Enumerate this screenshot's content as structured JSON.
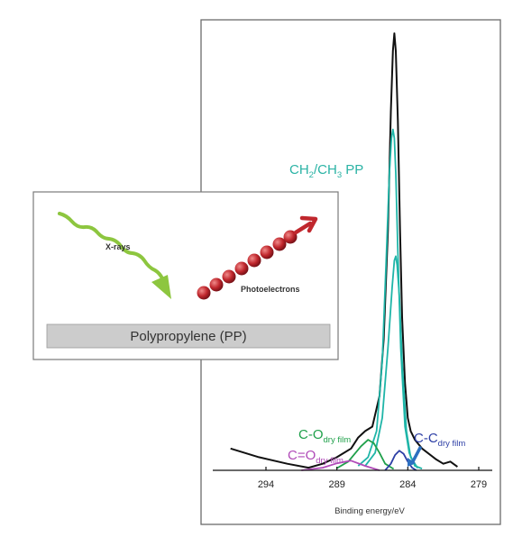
{
  "chart_data": {
    "type": "line",
    "title": "",
    "xlabel": "Binding energy/eV",
    "ylabel": "",
    "xlim": [
      297,
      279
    ],
    "x_reversed": true,
    "ylim": [
      0,
      1.0
    ],
    "xticks": [
      294,
      289,
      284,
      279
    ],
    "series": [
      {
        "key": "envelope",
        "color": "#111111",
        "x": [
          296.5,
          294.5,
          292.5,
          291,
          290,
          289,
          288,
          287.5,
          287,
          286.5,
          286,
          285.7,
          285.4,
          285.2,
          285.05,
          284.95,
          284.85,
          284.7,
          284.55,
          284.4,
          284.2,
          284,
          283.8,
          283.5,
          283,
          282,
          281.5,
          281,
          280.5
        ],
        "y": [
          0.05,
          0.03,
          0.015,
          0.006,
          0.015,
          0.03,
          0.05,
          0.075,
          0.09,
          0.1,
          0.17,
          0.3,
          0.55,
          0.82,
          0.96,
          1.0,
          0.96,
          0.8,
          0.55,
          0.35,
          0.2,
          0.12,
          0.09,
          0.07,
          0.05,
          0.025,
          0.015,
          0.02,
          0.008
        ]
      },
      {
        "key": "ch-pp-main",
        "color": "#1fb5a8",
        "x": [
          287.5,
          286.8,
          286.2,
          285.8,
          285.5,
          285.3,
          285.15,
          285.05,
          284.95,
          284.85,
          284.7,
          284.5,
          284.2,
          283.9,
          283.5,
          283
        ],
        "y": [
          0.01,
          0.03,
          0.09,
          0.25,
          0.5,
          0.68,
          0.76,
          0.78,
          0.76,
          0.68,
          0.5,
          0.28,
          0.1,
          0.04,
          0.01,
          0.004
        ]
      },
      {
        "key": "ch-pp-second",
        "color": "#1fb5a8",
        "x": [
          287,
          286.3,
          285.8,
          285.4,
          285.1,
          284.95,
          284.85,
          284.75,
          284.6,
          284.4,
          284.1,
          283.8,
          283.3
        ],
        "y": [
          0.01,
          0.04,
          0.12,
          0.28,
          0.42,
          0.48,
          0.49,
          0.47,
          0.4,
          0.25,
          0.09,
          0.03,
          0.005
        ]
      },
      {
        "key": "c-o-dry-film",
        "color": "#1fa04a",
        "x": [
          289,
          288.2,
          287.3,
          286.8,
          286.4,
          286,
          285.6,
          285
        ],
        "y": [
          0.005,
          0.02,
          0.055,
          0.07,
          0.062,
          0.04,
          0.015,
          0.003
        ]
      },
      {
        "key": "c-double-o-dry-film",
        "color": "#b04ab8",
        "x": [
          291.5,
          290,
          289,
          288,
          287,
          286
        ],
        "y": [
          0.0,
          0.006,
          0.016,
          0.022,
          0.01,
          0.0
        ]
      },
      {
        "key": "c-c-dry-film",
        "color": "#2c3ea5",
        "x": [
          285.6,
          285.2,
          284.9,
          284.6,
          284.3,
          284.0,
          283.7,
          283.4
        ],
        "y": [
          0.0,
          0.015,
          0.035,
          0.045,
          0.038,
          0.02,
          0.006,
          0.0
        ]
      }
    ],
    "annotations": [
      {
        "key": "ch2-ch3-pp",
        "color": "#2bb3a5",
        "parts": [
          [
            "CH",
            ""
          ],
          [
            "2",
            "sub"
          ],
          [
            "/CH",
            ""
          ],
          [
            "3",
            "sub"
          ],
          [
            " PP",
            ""
          ]
        ]
      },
      {
        "key": "c-o-dry-film",
        "color": "#1fa04a",
        "parts": [
          [
            "C-O",
            ""
          ],
          [
            "dry film",
            "sub"
          ]
        ]
      },
      {
        "key": "c-double-o-dry-film",
        "color": "#b04ab8",
        "parts": [
          [
            "C=O",
            ""
          ],
          [
            "dry film",
            "sub"
          ]
        ]
      },
      {
        "key": "c-c-dry-film",
        "color": "#2c3ea5",
        "parts": [
          [
            "C-C",
            ""
          ],
          [
            "dry film",
            "sub"
          ]
        ]
      }
    ]
  },
  "inset": {
    "xrays_label": "X-rays",
    "photoelectrons_label": "Photoelectrons",
    "substrate_label": "Polypropylene (PP)",
    "xray_color": "#8dc63f",
    "electron_color": "#c0272d"
  }
}
